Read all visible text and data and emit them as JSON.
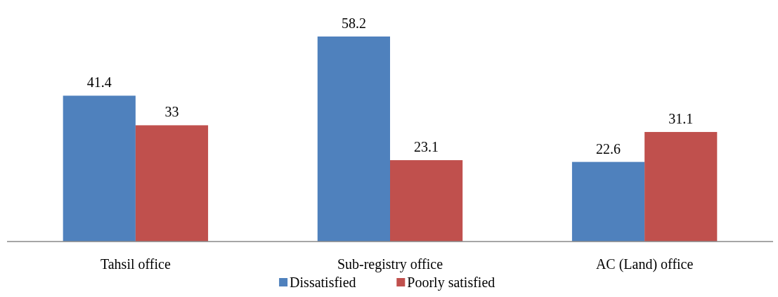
{
  "chart_data": {
    "type": "bar",
    "categories": [
      "Tahsil office",
      "Sub-registry office",
      "AC (Land) office"
    ],
    "series": [
      {
        "name": "Dissatisfied",
        "color": "#4f81bd",
        "values": [
          41.4,
          58.2,
          22.6
        ]
      },
      {
        "name": "Poorly satisfied",
        "color": "#c0504d",
        "values": [
          33,
          23.1,
          31.1
        ]
      }
    ],
    "data_labels": true,
    "legend": "bottom"
  }
}
